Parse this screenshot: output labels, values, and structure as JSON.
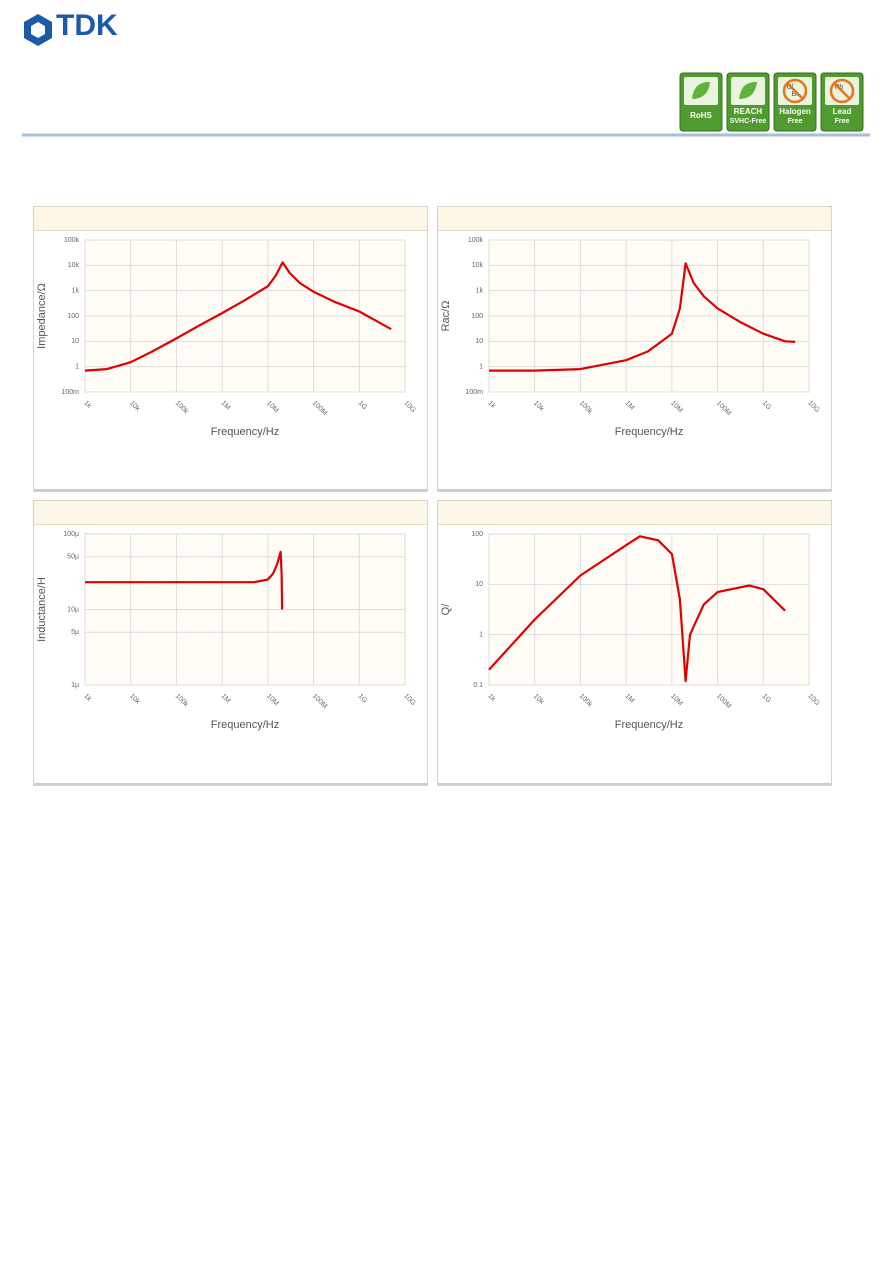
{
  "header": {
    "logo": "TDK",
    "badges": [
      {
        "lines": [
          "RoHS"
        ]
      },
      {
        "lines": [
          "REACH",
          "SVHC-Free"
        ]
      },
      {
        "lines": [
          "Halogen",
          "Free"
        ],
        "icon": [
          "Cl",
          "Br"
        ]
      },
      {
        "lines": [
          "Lead",
          "Free"
        ],
        "icon": [
          "Pb"
        ]
      }
    ]
  },
  "chart_data": [
    {
      "type": "line",
      "xlabel": "Frequency/Hz",
      "ylabel": "Impedance/Ω",
      "xscale": "log",
      "yscale": "log",
      "grid": true,
      "color": "#e00000",
      "x": [
        1000,
        3000,
        10000,
        30000,
        100000,
        300000,
        1000000,
        3000000,
        10000000,
        15000000,
        21000000,
        30000000,
        50000000,
        100000000,
        300000000,
        1000000000,
        3000000000,
        5000000000
      ],
      "values": [
        0.7,
        0.8,
        1.5,
        4,
        13,
        40,
        130,
        400,
        1500,
        4000,
        13000,
        5000,
        2000,
        900,
        350,
        150,
        50,
        30
      ],
      "xlim": [
        1000,
        10000000000
      ],
      "xticks": [
        {
          "value": 1000,
          "label": "1k"
        },
        {
          "value": 10000,
          "label": "10k"
        },
        {
          "value": 100000,
          "label": "100k"
        },
        {
          "value": 1000000,
          "label": "1M"
        },
        {
          "value": 10000000,
          "label": "10M"
        },
        {
          "value": 100000000,
          "label": "100M"
        },
        {
          "value": 1000000000,
          "label": "1G"
        },
        {
          "value": 10000000000,
          "label": "10G"
        }
      ],
      "ylim": [
        0.1,
        100000
      ],
      "yticks": [
        {
          "value": 0.1,
          "label": "100m"
        },
        1,
        10,
        100,
        {
          "value": 1000,
          "label": "1k"
        },
        {
          "value": 10000,
          "label": "10k"
        },
        {
          "value": 100000,
          "label": "100k"
        }
      ]
    },
    {
      "type": "line",
      "xlabel": "Frequency/Hz",
      "ylabel": "Rac/Ω",
      "xscale": "log",
      "yscale": "log",
      "grid": true,
      "color": "#e00000",
      "x": [
        1000,
        10000,
        100000,
        1000000,
        3000000,
        10000000,
        15000000,
        20000000,
        30000000,
        50000000,
        100000000,
        300000000,
        1000000000,
        3000000000,
        5000000000
      ],
      "values": [
        0.7,
        0.7,
        0.8,
        1.8,
        4,
        20,
        200,
        12000,
        2000,
        600,
        200,
        60,
        20,
        10,
        9.5
      ],
      "xlim": [
        1000,
        10000000000
      ],
      "xticks": [
        {
          "value": 1000,
          "label": "1k"
        },
        {
          "value": 10000,
          "label": "10k"
        },
        {
          "value": 100000,
          "label": "100k"
        },
        {
          "value": 1000000,
          "label": "1M"
        },
        {
          "value": 10000000,
          "label": "10M"
        },
        {
          "value": 100000000,
          "label": "100M"
        },
        {
          "value": 1000000000,
          "label": "1G"
        },
        {
          "value": 10000000000,
          "label": "10G"
        }
      ],
      "ylim": [
        0.1,
        100000
      ],
      "yticks": [
        {
          "value": 0.1,
          "label": "100m"
        },
        1,
        10,
        100,
        {
          "value": 1000,
          "label": "1k"
        },
        {
          "value": 10000,
          "label": "10k"
        },
        {
          "value": 100000,
          "label": "100k"
        }
      ]
    },
    {
      "type": "line",
      "xlabel": "Frequency/Hz",
      "ylabel": "Inductance/H",
      "xscale": "log",
      "yscale": "log",
      "grid": true,
      "color": "#e00000",
      "x": [
        1000,
        10000,
        100000,
        1000000,
        5000000,
        10000000,
        13000000,
        16000000,
        19000000,
        20000000,
        20500000
      ],
      "values": [
        2.3e-05,
        2.3e-05,
        2.3e-05,
        2.3e-05,
        2.3e-05,
        2.5e-05,
        3e-05,
        4e-05,
        5.8e-05,
        3e-05,
        1e-05
      ],
      "xlim": [
        1000,
        10000000000
      ],
      "xticks": [
        {
          "value": 1000,
          "label": "1k"
        },
        {
          "value": 10000,
          "label": "10k"
        },
        {
          "value": 100000,
          "label": "100k"
        },
        {
          "value": 1000000,
          "label": "1M"
        },
        {
          "value": 10000000,
          "label": "10M"
        },
        {
          "value": 100000000,
          "label": "100M"
        },
        {
          "value": 1000000000,
          "label": "1G"
        },
        {
          "value": 10000000000,
          "label": "10G"
        }
      ],
      "ylim": [
        1e-06,
        0.0001
      ],
      "yticks": [
        {
          "value": 1e-06,
          "label": "1µ"
        },
        {
          "value": 5e-06,
          "label": "5µ"
        },
        {
          "value": 1e-05,
          "label": "10µ"
        },
        {
          "value": 5e-05,
          "label": "50µ"
        },
        {
          "value": 0.0001,
          "label": "100µ"
        }
      ]
    },
    {
      "type": "line",
      "xlabel": "Frequency/Hz",
      "ylabel": "Q/",
      "xscale": "log",
      "yscale": "log",
      "grid": true,
      "color": "#e00000",
      "x": [
        1000,
        10000,
        100000,
        1000000,
        2000000,
        5000000,
        10000000,
        15000000,
        20000000,
        25000000,
        50000000,
        100000000,
        200000000,
        500000000,
        1000000000,
        3000000000
      ],
      "values": [
        0.2,
        2,
        15,
        60,
        90,
        75,
        40,
        5,
        0.12,
        1,
        4,
        7,
        8,
        9.5,
        8,
        3
      ],
      "xlim": [
        1000,
        10000000000
      ],
      "xticks": [
        {
          "value": 1000,
          "label": "1k"
        },
        {
          "value": 10000,
          "label": "10k"
        },
        {
          "value": 100000,
          "label": "100k"
        },
        {
          "value": 1000000,
          "label": "1M"
        },
        {
          "value": 10000000,
          "label": "10M"
        },
        {
          "value": 100000000,
          "label": "100M"
        },
        {
          "value": 1000000000,
          "label": "1G"
        },
        {
          "value": 10000000000,
          "label": "10G"
        }
      ],
      "ylim": [
        0.1,
        100
      ],
      "yticks": [
        0.1,
        1,
        10,
        100
      ]
    }
  ]
}
